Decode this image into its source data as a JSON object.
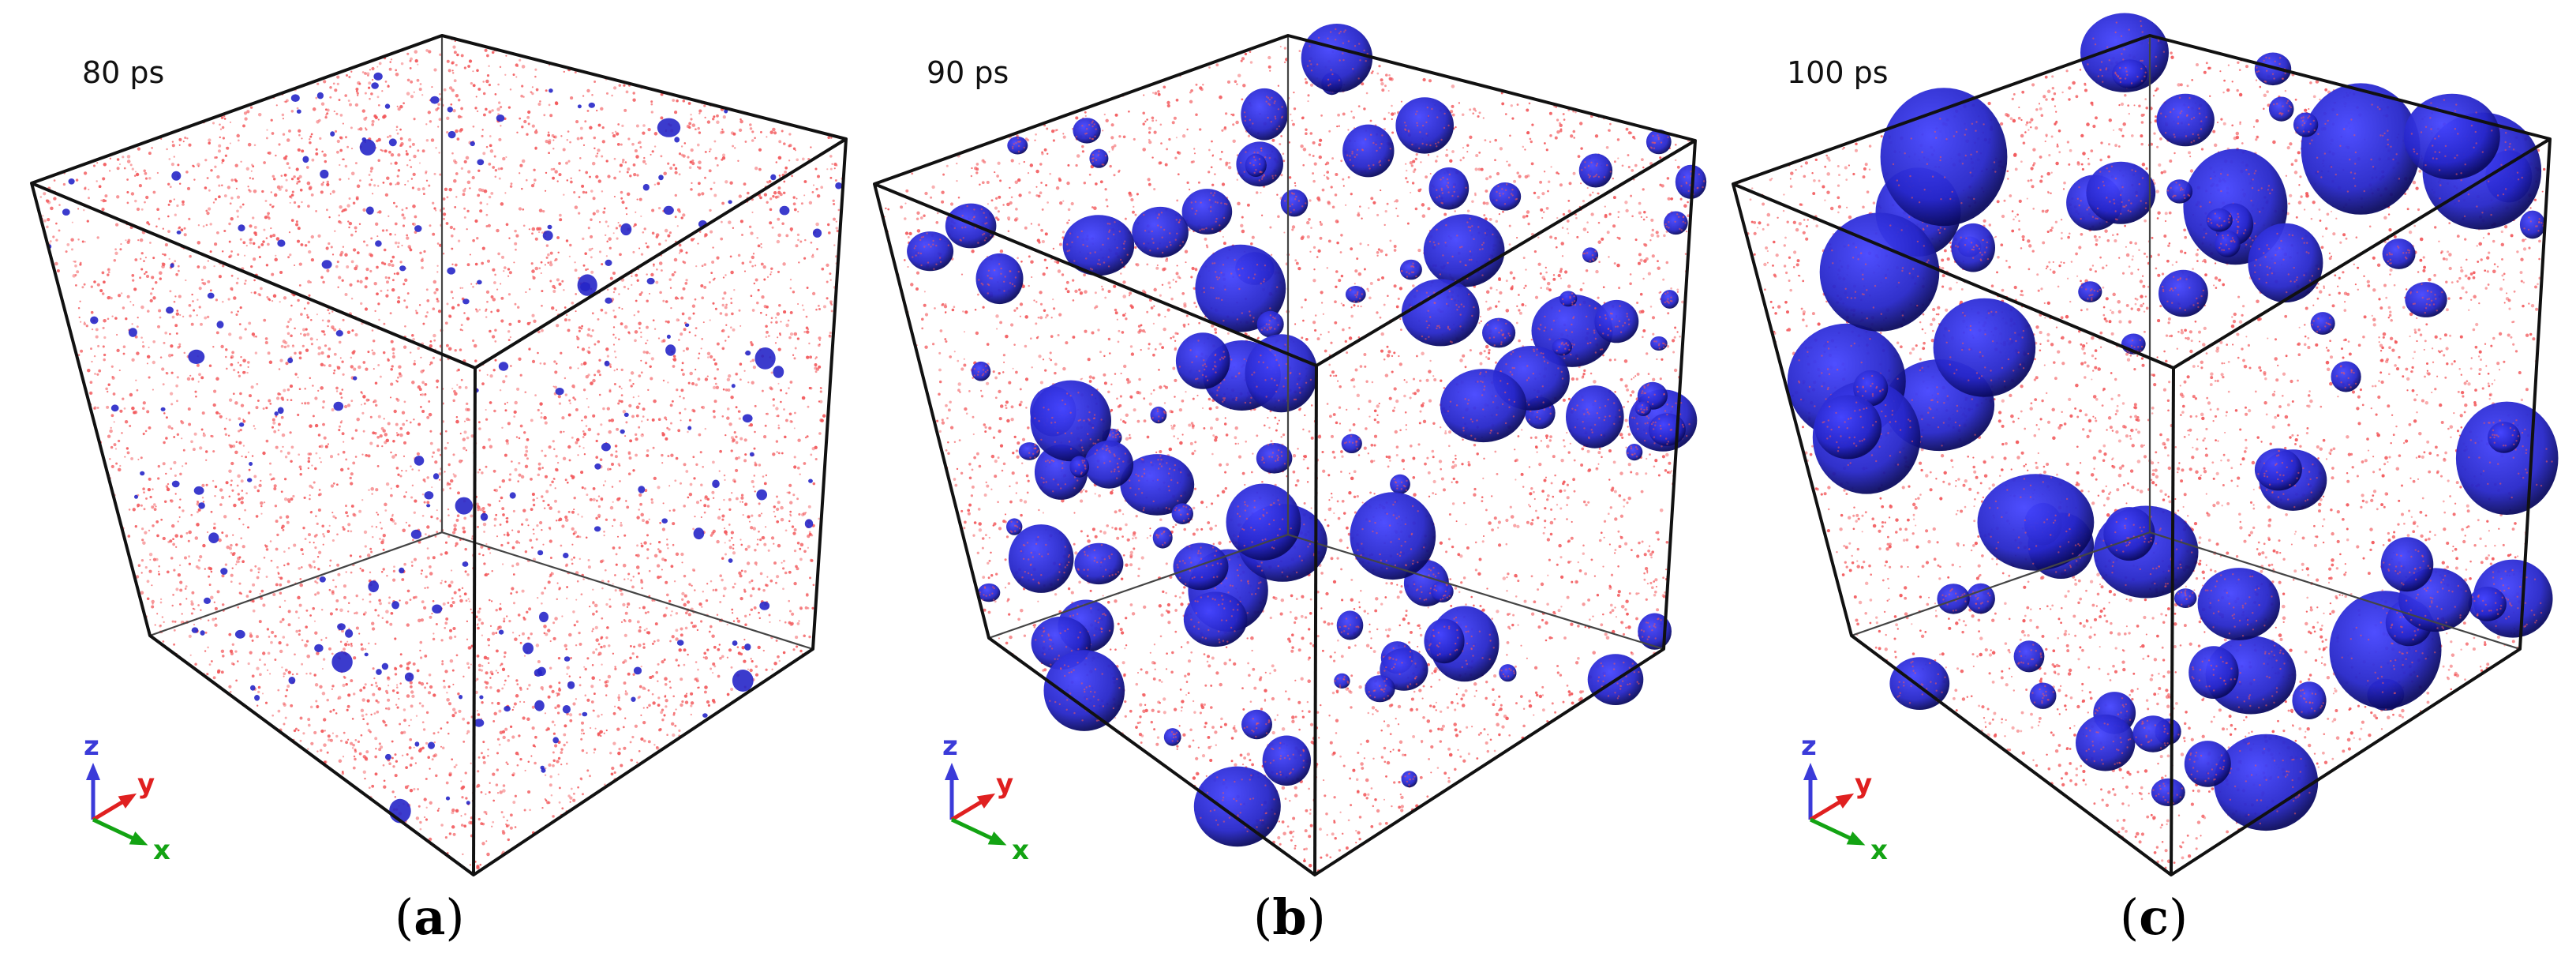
{
  "colors": {
    "solid_atoms": "#f2575a",
    "liquid_clusters": "#2626c8",
    "cluster_dark": "#0b0b60",
    "frame": "#111111",
    "axis_z": "#3b3bd9",
    "axis_y": "#e02020",
    "axis_x": "#13a313"
  },
  "panels": [
    {
      "time": "80 ps",
      "caption_open": "(",
      "caption_letter": "a",
      "caption_close": ")",
      "cluster_stage": 1
    },
    {
      "time": "90 ps",
      "caption_open": "(",
      "caption_letter": "b",
      "caption_close": ")",
      "cluster_stage": 2
    },
    {
      "time": "100 ps",
      "caption_open": "(",
      "caption_letter": "c",
      "caption_close": ")",
      "cluster_stage": 3
    }
  ],
  "axes": {
    "z": "z",
    "y": "y",
    "x": "x"
  }
}
